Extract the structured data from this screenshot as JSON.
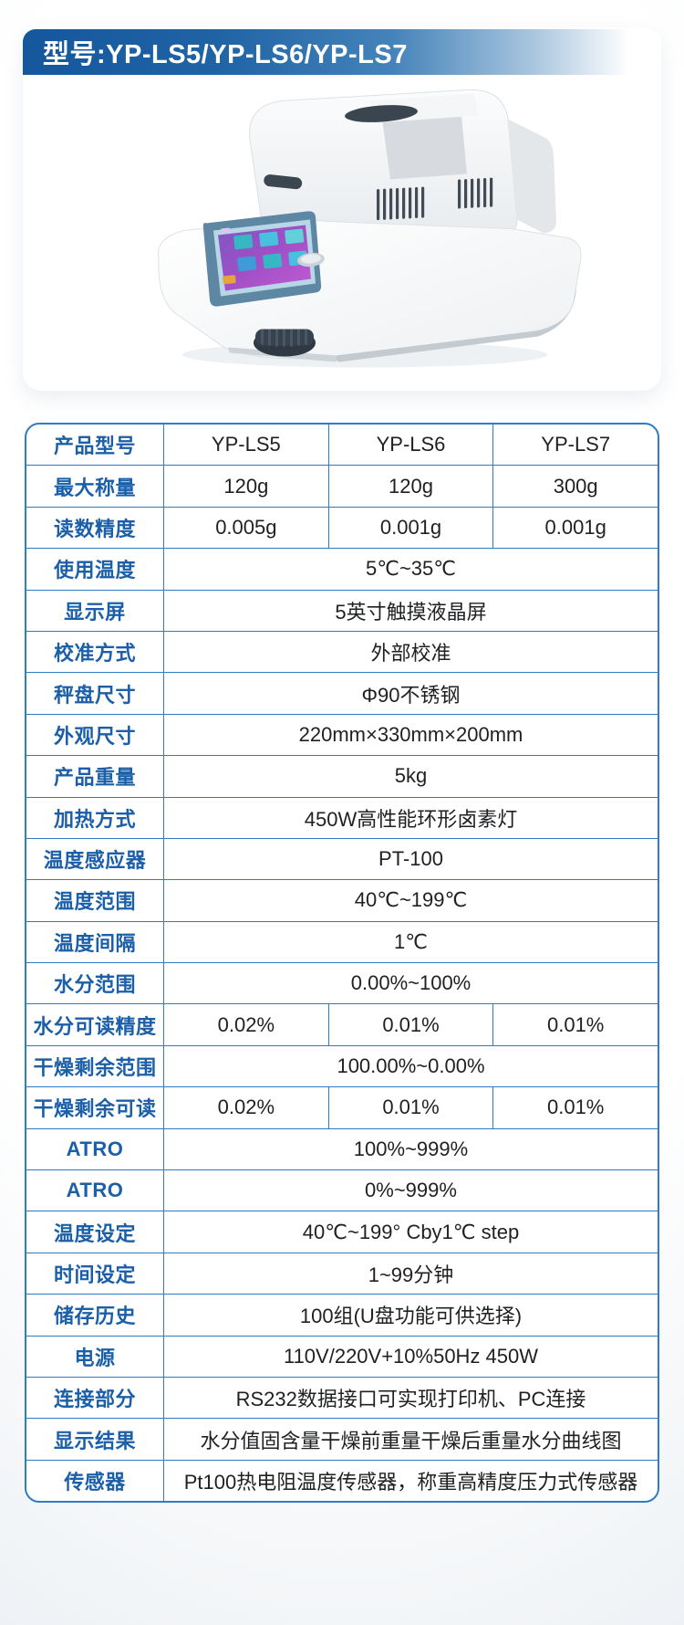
{
  "header": {
    "title": "型号:YP-LS5/YP-LS6/YP-LS7"
  },
  "colors": {
    "header_blue": "#15579C",
    "header_gradient_end": "#FFFFFF",
    "table_border_blue": "#2E7CC3",
    "label_text_blue": "#1C5FA9",
    "value_text": "#1F2022"
  },
  "spec_table": {
    "rows": [
      {
        "label": "产品型号",
        "values": [
          "YP-LS5",
          "YP-LS6",
          "YP-LS7"
        ]
      },
      {
        "label": "最大称量",
        "values": [
          "120g",
          "120g",
          "300g"
        ]
      },
      {
        "label": "读数精度",
        "values": [
          "0.005g",
          "0.001g",
          "0.001g"
        ]
      },
      {
        "label": "使用温度",
        "values": [
          "5℃~35℃"
        ]
      },
      {
        "label": "显示屏",
        "values": [
          "5英寸触摸液晶屏"
        ]
      },
      {
        "label": "校准方式",
        "values": [
          "外部校准"
        ]
      },
      {
        "label": "秤盘尺寸",
        "values": [
          "Φ90不锈钢"
        ]
      },
      {
        "label": "外观尺寸",
        "values": [
          "220mm×330mm×200mm"
        ]
      },
      {
        "label": "产品重量",
        "values": [
          "5kg"
        ]
      },
      {
        "label": "加热方式",
        "values": [
          "450W高性能环形卤素灯"
        ]
      },
      {
        "label": "温度感应器",
        "values": [
          "PT-100"
        ]
      },
      {
        "label": "温度范围",
        "values": [
          "40℃~199℃"
        ]
      },
      {
        "label": "温度间隔",
        "values": [
          "1℃"
        ]
      },
      {
        "label": "水分范围",
        "values": [
          "0.00%~100%"
        ]
      },
      {
        "label": "水分可读精度",
        "values": [
          "0.02%",
          "0.01%",
          "0.01%"
        ]
      },
      {
        "label": "干燥剩余范围",
        "values": [
          "100.00%~0.00%"
        ]
      },
      {
        "label": "干燥剩余可读",
        "values": [
          "0.02%",
          "0.01%",
          "0.01%"
        ]
      },
      {
        "label": "ATRO",
        "values": [
          "100%~999%"
        ]
      },
      {
        "label": "ATRO",
        "values": [
          "0%~999%"
        ]
      },
      {
        "label": "温度设定",
        "values": [
          "40℃~199° Cby1℃ step"
        ]
      },
      {
        "label": "时间设定",
        "values": [
          "1~99分钟"
        ]
      },
      {
        "label": "储存历史",
        "values": [
          "100组(U盘功能可供选择)"
        ]
      },
      {
        "label": "电源",
        "values": [
          "110V/220V+10%50Hz 450W"
        ]
      },
      {
        "label": "连接部分",
        "values": [
          "RS232数据接口可实现打印机、PC连接"
        ]
      },
      {
        "label": "显示结果",
        "values": [
          "水分值固含量干燥前重量干燥后重量水分曲线图"
        ]
      },
      {
        "label": "传感器",
        "values": [
          "Pt100热电阻温度传感器，称重高精度压力式传感器"
        ]
      }
    ]
  }
}
